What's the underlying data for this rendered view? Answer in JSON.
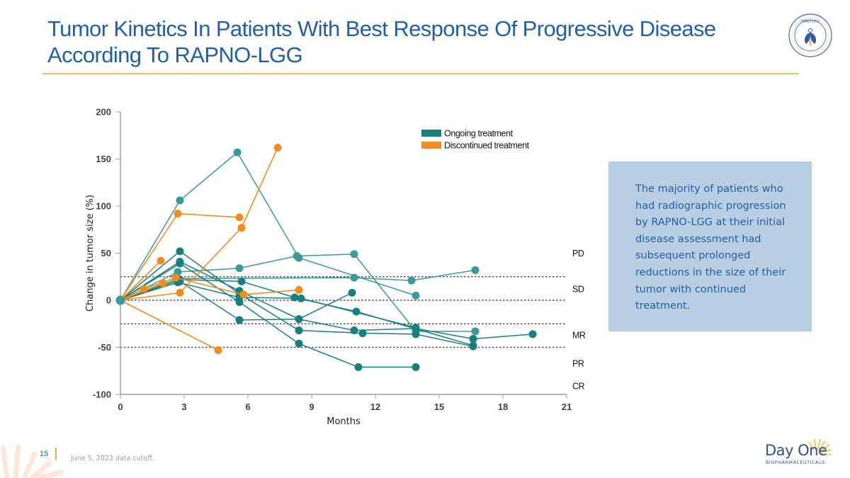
{
  "slide": {
    "title_line1": "Tumor Kinetics In Patients With Best Response Of Progressive Disease",
    "title_line2": "According To RAPNO-LGG",
    "logo_text": "FIREFLY-1",
    "callout_text": "The majority of patients who had radiographic progression by RAPNO-LGG at their initial disease assessment had subsequent prolonged reductions in the size of their tumor with continued treatment.",
    "page_number": "15",
    "footnote": "June 5, 2023 data cutoff.",
    "company_name": "Day One",
    "company_sub": "BIOPHARMACEUTICALS"
  },
  "colors": {
    "title": "#1f5fa8",
    "accent_rule": "#f0c15a",
    "ongoing": "#17807e",
    "ongoing_light": "#3a9a97",
    "discontinued": "#f28c1c",
    "callout_bg": "#b8cfe3"
  },
  "chart_data": {
    "type": "line",
    "title": "",
    "xlabel": "Months",
    "ylabel": "Change in tumor size (%)",
    "xlim": [
      0,
      21
    ],
    "ylim": [
      -100,
      200
    ],
    "xticks": [
      0,
      3,
      6,
      9,
      12,
      15,
      18,
      21
    ],
    "yticks": [
      -100,
      -50,
      0,
      50,
      100,
      150,
      200
    ],
    "grid": false,
    "legend": {
      "position": "top-right",
      "entries": [
        {
          "name": "Ongoing treatment",
          "color": "#17807e"
        },
        {
          "name": "Discontinued treatment",
          "color": "#f28c1c"
        }
      ]
    },
    "thresholds": [
      {
        "y": 25,
        "style": "dotted"
      },
      {
        "y": 0,
        "style": "dotted"
      },
      {
        "y": -25,
        "style": "dotted"
      },
      {
        "y": -50,
        "style": "dotted"
      }
    ],
    "response_labels": [
      {
        "label": "PD",
        "y": 50
      },
      {
        "label": "SD",
        "y": 12
      },
      {
        "label": "MR",
        "y": -37
      },
      {
        "label": "PR",
        "y": -67
      },
      {
        "label": "CR",
        "y": -91
      }
    ],
    "series": [
      {
        "name": "Ongoing 1",
        "group": "ongoing",
        "shade": "light",
        "x": [
          0,
          2.8,
          5.5,
          8.4,
          13.9
        ],
        "y": [
          0,
          106,
          157,
          45,
          5
        ]
      },
      {
        "name": "Ongoing 2",
        "group": "ongoing",
        "shade": "light",
        "x": [
          0,
          2.7,
          5.6,
          8.3,
          11.0,
          13.9,
          16.7
        ],
        "y": [
          0,
          30,
          34,
          47,
          49,
          -33,
          -33
        ]
      },
      {
        "name": "Ongoing 3",
        "group": "ongoing",
        "shade": "light",
        "x": [
          0,
          2.7,
          11.0,
          13.7,
          16.7
        ],
        "y": [
          0,
          23,
          24,
          21,
          32
        ]
      },
      {
        "name": "Ongoing 4",
        "group": "ongoing",
        "shade": "dark",
        "x": [
          0,
          2.8,
          5.6,
          8.4,
          11.4,
          13.9,
          16.6
        ],
        "y": [
          0,
          52,
          7,
          -32,
          -35,
          -36,
          -49
        ]
      },
      {
        "name": "Ongoing 5",
        "group": "ongoing",
        "shade": "dark",
        "x": [
          0,
          2.8,
          5.6,
          8.4,
          11.2,
          13.9
        ],
        "y": [
          0,
          39,
          -2,
          -46,
          -71,
          -71
        ]
      },
      {
        "name": "Ongoing 6",
        "group": "ongoing",
        "shade": "dark",
        "x": [
          0,
          2.8,
          5.6,
          8.4,
          11.0,
          13.9,
          16.6,
          19.4
        ],
        "y": [
          0,
          41,
          10,
          -20,
          -32,
          -30,
          -41,
          -36
        ]
      },
      {
        "name": "Ongoing 7",
        "group": "ongoing",
        "shade": "dark",
        "x": [
          0,
          2.8,
          5.6,
          8.4,
          10.9
        ],
        "y": [
          0,
          20,
          -21,
          -20,
          8
        ]
      },
      {
        "name": "Ongoing 8",
        "group": "ongoing",
        "shade": "dark",
        "x": [
          0,
          2.8,
          5.7,
          8.2,
          11.1,
          16.6
        ],
        "y": [
          0,
          22,
          20,
          3,
          -12,
          -48
        ]
      },
      {
        "name": "Ongoing 9",
        "group": "ongoing",
        "shade": "dark",
        "x": [
          0,
          2.7,
          5.6,
          8.5,
          13.9
        ],
        "y": [
          0,
          19,
          3,
          2,
          -29
        ]
      },
      {
        "name": "Discontinued 1",
        "group": "discontinued",
        "x": [
          0,
          2.7,
          5.6
        ],
        "y": [
          0,
          92,
          88
        ]
      },
      {
        "name": "Discontinued 2",
        "group": "discontinued",
        "x": [
          0,
          2.8,
          5.7,
          7.4
        ],
        "y": [
          0,
          8,
          77,
          162
        ]
      },
      {
        "name": "Discontinued 3",
        "group": "discontinued",
        "x": [
          0,
          1.9
        ],
        "y": [
          0,
          42
        ]
      },
      {
        "name": "Discontinued 4",
        "group": "discontinued",
        "x": [
          0,
          1.1,
          2.6,
          5.8,
          8.4
        ],
        "y": [
          0,
          12,
          24,
          6,
          11
        ]
      },
      {
        "name": "Discontinued 5",
        "group": "discontinued",
        "x": [
          0,
          2.0
        ],
        "y": [
          0,
          18
        ]
      },
      {
        "name": "Discontinued 6",
        "group": "discontinued",
        "x": [
          0,
          4.6
        ],
        "y": [
          0,
          -53
        ]
      }
    ]
  }
}
